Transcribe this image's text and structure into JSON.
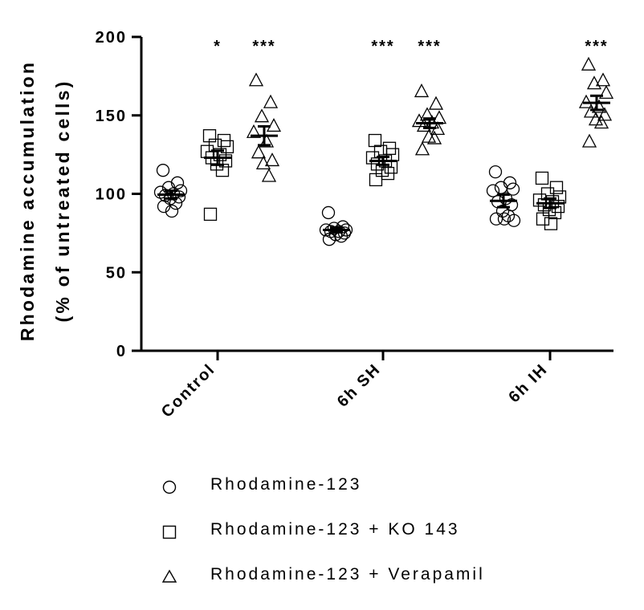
{
  "chart_data": {
    "type": "scatter",
    "subtype": "dot plot with mean and SEM bars",
    "ylabel_line1": "Rhodamine accumulation",
    "ylabel_line2": "(% of untreated cells)",
    "ylim": [
      0,
      200
    ],
    "yticks": [
      "0",
      "50",
      "100",
      "150",
      "200"
    ],
    "ytick_values": [
      0,
      50,
      100,
      150,
      200
    ],
    "categories": [
      "Control",
      "6h SH",
      "6h IH"
    ],
    "series": [
      {
        "name": "Rhodamine-123",
        "marker": "circle",
        "groups": [
          {
            "category": "Control",
            "values": [
              115,
              107,
              104,
              102,
              101,
              100,
              99,
              98,
              97,
              94,
              92,
              89
            ],
            "mean": 99.5,
            "sem": 2.5,
            "significance": ""
          },
          {
            "category": "6h SH",
            "values": [
              88,
              79,
              78,
              77,
              77,
              76,
              76,
              75,
              74,
              73,
              71
            ],
            "mean": 77,
            "sem": 1.5,
            "significance": ""
          },
          {
            "category": "6h IH",
            "values": [
              114,
              107,
              104,
              103,
              102,
              97,
              95,
              93,
              89,
              86,
              84,
              84,
              83
            ],
            "mean": 95.5,
            "sem": 4,
            "significance": ""
          }
        ]
      },
      {
        "name": "Rhodamine-123 + KO 143",
        "marker": "square",
        "groups": [
          {
            "category": "Control",
            "values": [
              137,
              134,
              131,
              130,
              127,
              125,
              123,
              121,
              119,
              115,
              87
            ],
            "mean": 123,
            "sem": 4.5,
            "significance": "*"
          },
          {
            "category": "6h SH",
            "values": [
              134,
              129,
              127,
              125,
              123,
              121,
              119,
              117,
              115,
              113,
              109
            ],
            "mean": 121,
            "sem": 2.5,
            "significance": "***"
          },
          {
            "category": "6h IH",
            "values": [
              110,
              104,
              100,
              98,
              96,
              95,
              93,
              92,
              90,
              88,
              84,
              81
            ],
            "mean": 94,
            "sem": 3,
            "significance": ""
          }
        ]
      },
      {
        "name": "Rhodamine-123 + Verapamil",
        "marker": "triangle",
        "groups": [
          {
            "category": "Control",
            "values": [
              172,
              158,
              149,
              143,
              139,
              133,
              126,
              121,
              119,
              111
            ],
            "mean": 137,
            "sem": 6,
            "significance": "***"
          },
          {
            "category": "6h SH",
            "values": [
              165,
              157,
              150,
              148,
              146,
              145,
              143,
              141,
              136,
              135,
              128
            ],
            "mean": 145,
            "sem": 3,
            "significance": "***"
          },
          {
            "category": "6h IH",
            "values": [
              182,
              172,
              170,
              164,
              158,
              155,
              152,
              150,
              147,
              145,
              133
            ],
            "mean": 158,
            "sem": 4.5,
            "significance": "***"
          }
        ]
      }
    ],
    "legend_placement": "bottom",
    "grid": false
  }
}
